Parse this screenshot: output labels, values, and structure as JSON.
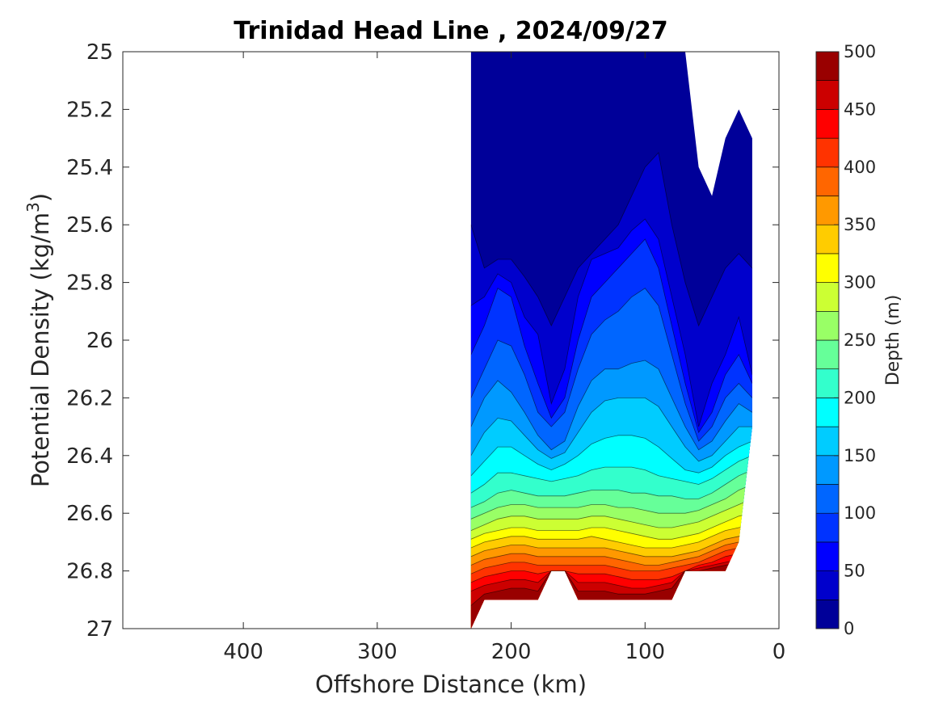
{
  "chart_data": {
    "type": "contour",
    "title": "Trinidad Head Line , 2024/09/27",
    "xlabel": "Offshore Distance (km)",
    "ylabel": "Potential Density (kg/m",
    "ylabel_sup": "3",
    "ylabel_close": ")",
    "xlim": [
      490,
      0
    ],
    "ylim": [
      27,
      25
    ],
    "x_reversed": true,
    "y_reversed": true,
    "x_ticks": [
      400,
      300,
      200,
      100,
      0
    ],
    "y_ticks": [
      25,
      25.2,
      25.4,
      25.6,
      25.8,
      26,
      26.2,
      26.4,
      26.6,
      26.8,
      27
    ],
    "colorbar": {
      "label": "Depth (m)",
      "range": [
        0,
        500
      ],
      "step": 25,
      "ticks": [
        0,
        50,
        100,
        150,
        200,
        250,
        300,
        350,
        400,
        450,
        500
      ],
      "colormap": "jet"
    },
    "depth_levels": [
      25,
      50,
      75,
      100,
      125,
      150,
      175,
      200,
      225,
      250,
      275,
      300,
      325,
      350,
      375,
      400,
      425,
      450,
      475
    ],
    "x": [
      230,
      220,
      210,
      200,
      190,
      180,
      170,
      160,
      150,
      140,
      130,
      120,
      110,
      100,
      90,
      80,
      70,
      60,
      50,
      40,
      30,
      20
    ],
    "data_extent": {
      "x_min": 20,
      "x_max": 230,
      "top_density": [
        25.0,
        25.0,
        25.0,
        25.0,
        25.0,
        25.0,
        25.0,
        25.0,
        25.0,
        25.0,
        25.0,
        25.0,
        25.0,
        25.0,
        25.0,
        25.0,
        25.0,
        25.4,
        25.5,
        25.3,
        25.2,
        25.3
      ],
      "bottom_density": [
        27.0,
        26.9,
        26.9,
        26.9,
        26.9,
        26.9,
        26.8,
        26.8,
        26.9,
        26.9,
        26.9,
        26.9,
        26.9,
        26.9,
        26.9,
        26.9,
        26.8,
        26.8,
        26.8,
        26.8,
        26.7,
        26.3
      ]
    },
    "isopycnal_density_by_level": [
      [
        25.6,
        25.75,
        25.72,
        25.72,
        25.78,
        25.85,
        25.95,
        25.85,
        25.75,
        25.7,
        25.65,
        25.6,
        25.5,
        25.4,
        25.35,
        25.6,
        25.8,
        25.95,
        25.85,
        25.75,
        25.7,
        25.75
      ],
      [
        25.88,
        25.85,
        25.77,
        25.8,
        25.92,
        25.98,
        26.22,
        26.1,
        25.85,
        25.72,
        25.7,
        25.68,
        25.62,
        25.58,
        25.65,
        25.85,
        26.05,
        26.3,
        26.15,
        26.05,
        25.92,
        26.12
      ],
      [
        26.05,
        25.95,
        25.82,
        25.85,
        26.02,
        26.15,
        26.27,
        26.2,
        26.0,
        25.85,
        25.8,
        25.75,
        25.7,
        25.65,
        25.75,
        25.95,
        26.15,
        26.32,
        26.25,
        26.12,
        26.05,
        26.15
      ],
      [
        26.2,
        26.1,
        26.0,
        26.02,
        26.12,
        26.25,
        26.3,
        26.25,
        26.1,
        25.98,
        25.93,
        25.9,
        25.85,
        25.82,
        25.88,
        26.05,
        26.22,
        26.35,
        26.3,
        26.2,
        26.15,
        26.2
      ],
      [
        26.3,
        26.2,
        26.14,
        26.18,
        26.25,
        26.33,
        26.38,
        26.35,
        26.23,
        26.14,
        26.1,
        26.1,
        26.08,
        26.07,
        26.1,
        26.2,
        26.3,
        26.38,
        26.35,
        26.28,
        26.22,
        26.25
      ],
      [
        26.4,
        26.32,
        26.27,
        26.28,
        26.33,
        26.38,
        26.41,
        26.39,
        26.32,
        26.25,
        26.21,
        26.2,
        26.2,
        26.2,
        26.23,
        26.3,
        26.37,
        26.42,
        26.4,
        26.35,
        26.3,
        26.3
      ],
      [
        26.47,
        26.42,
        26.37,
        26.37,
        26.4,
        26.43,
        26.45,
        26.43,
        26.4,
        26.36,
        26.34,
        26.33,
        26.33,
        26.34,
        26.37,
        26.41,
        26.45,
        26.46,
        26.44,
        26.4,
        26.37,
        26.35
      ],
      [
        26.53,
        26.5,
        26.46,
        26.46,
        26.47,
        26.48,
        26.49,
        26.48,
        26.47,
        26.45,
        26.44,
        26.44,
        26.44,
        26.45,
        26.47,
        26.48,
        26.49,
        26.5,
        26.48,
        26.45,
        26.42,
        26.4
      ],
      [
        26.58,
        26.56,
        26.53,
        26.52,
        26.53,
        26.54,
        26.54,
        26.54,
        26.53,
        26.52,
        26.52,
        26.52,
        26.53,
        26.53,
        26.54,
        26.54,
        26.55,
        26.55,
        26.53,
        26.5,
        26.47,
        26.45
      ],
      [
        26.62,
        26.6,
        26.58,
        26.57,
        26.57,
        26.58,
        26.58,
        26.58,
        26.58,
        26.57,
        26.57,
        26.58,
        26.58,
        26.59,
        26.6,
        26.6,
        26.6,
        26.59,
        26.57,
        26.55,
        26.52,
        26.5
      ],
      [
        26.66,
        26.64,
        26.62,
        26.61,
        26.61,
        26.62,
        26.62,
        26.62,
        26.62,
        26.61,
        26.61,
        26.62,
        26.63,
        26.64,
        26.65,
        26.65,
        26.64,
        26.63,
        26.61,
        26.59,
        26.57,
        26.55
      ],
      [
        26.69,
        26.67,
        26.66,
        26.65,
        26.65,
        26.66,
        26.66,
        26.66,
        26.66,
        26.65,
        26.65,
        26.66,
        26.67,
        26.68,
        26.69,
        26.69,
        26.68,
        26.67,
        26.65,
        26.63,
        26.61,
        26.6
      ],
      [
        26.72,
        26.7,
        26.69,
        26.68,
        26.68,
        26.69,
        26.69,
        26.69,
        26.69,
        26.68,
        26.69,
        26.7,
        26.71,
        26.72,
        26.72,
        26.72,
        26.71,
        26.7,
        26.68,
        26.66,
        26.65,
        26.64
      ],
      [
        26.75,
        26.73,
        26.72,
        26.71,
        26.71,
        26.72,
        26.72,
        26.72,
        26.72,
        26.72,
        26.72,
        26.73,
        26.74,
        26.75,
        26.75,
        26.75,
        26.74,
        26.73,
        26.71,
        26.69,
        26.68,
        26.67
      ],
      [
        26.78,
        26.76,
        26.75,
        26.74,
        26.74,
        26.75,
        26.75,
        26.75,
        26.75,
        26.75,
        26.75,
        26.76,
        26.77,
        26.78,
        26.78,
        26.77,
        26.76,
        26.75,
        26.73,
        26.71,
        26.7,
        26.69
      ],
      [
        26.81,
        26.79,
        26.78,
        26.77,
        26.77,
        26.78,
        26.78,
        26.78,
        26.78,
        26.78,
        26.78,
        26.79,
        26.8,
        26.8,
        26.8,
        26.79,
        26.78,
        26.77,
        26.75,
        26.73,
        26.72,
        26.71
      ],
      [
        26.84,
        26.82,
        26.81,
        26.8,
        26.8,
        26.81,
        26.8,
        26.8,
        26.81,
        26.81,
        26.81,
        26.82,
        26.83,
        26.83,
        26.83,
        26.82,
        26.8,
        26.78,
        26.77,
        26.75,
        26.74,
        26.73
      ],
      [
        26.87,
        26.85,
        26.84,
        26.83,
        26.83,
        26.84,
        26.8,
        26.8,
        26.84,
        26.84,
        26.84,
        26.85,
        26.86,
        26.86,
        26.85,
        26.84,
        26.8,
        26.79,
        26.78,
        26.77,
        26.76,
        26.75
      ],
      [
        26.92,
        26.88,
        26.87,
        26.86,
        26.86,
        26.87,
        26.8,
        26.8,
        26.87,
        26.87,
        26.87,
        26.88,
        26.88,
        26.88,
        26.87,
        26.86,
        26.8,
        26.8,
        26.79,
        26.78,
        26.77,
        26.76
      ]
    ]
  }
}
